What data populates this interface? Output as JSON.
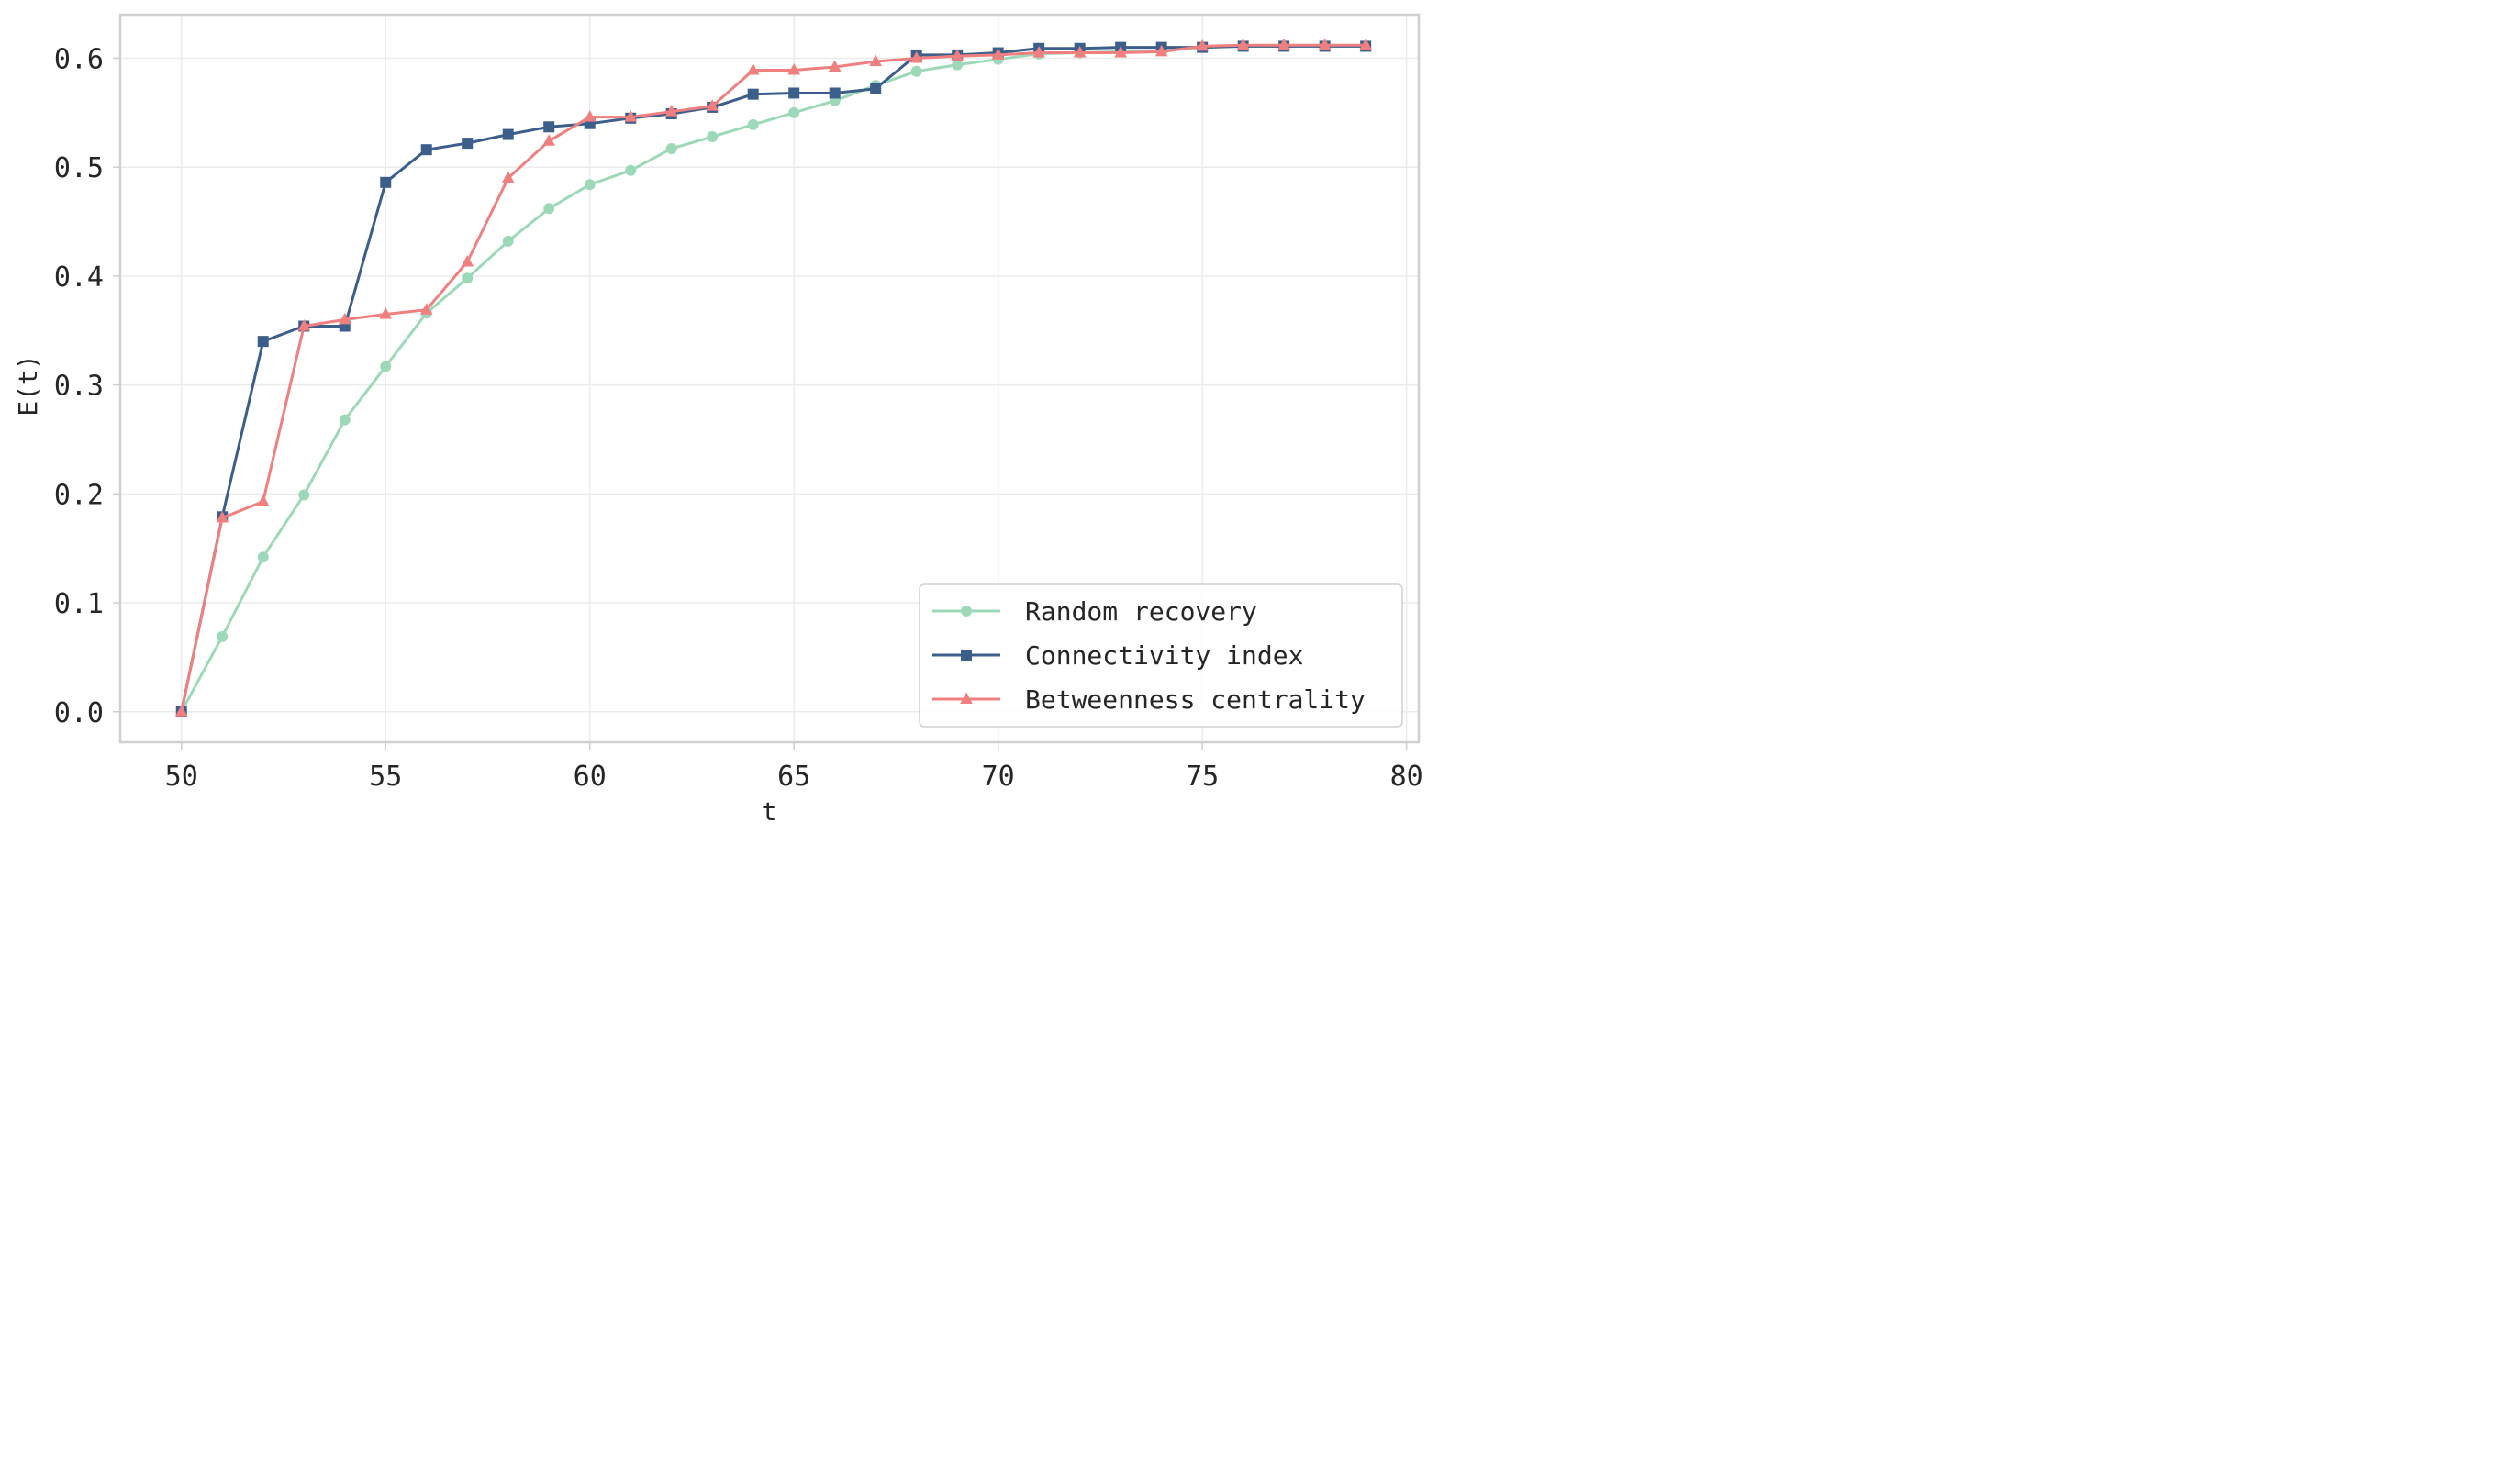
{
  "chart_data": {
    "type": "line",
    "title": "",
    "xlabel": "t",
    "ylabel": "E(t)",
    "xlim": [
      48.5,
      80.3
    ],
    "ylim": [
      -0.028,
      0.64
    ],
    "xticks": [
      50,
      55,
      60,
      65,
      70,
      75,
      80
    ],
    "yticks": [
      0.0,
      0.1,
      0.2,
      0.3,
      0.4,
      0.5,
      0.6
    ],
    "ytick_labels": [
      "0.0",
      "0.1",
      "0.2",
      "0.3",
      "0.4",
      "0.5",
      "0.6"
    ],
    "grid": true,
    "legend_position": "bottom-right",
    "x": [
      50,
      51,
      52,
      53,
      54,
      55,
      56,
      57,
      58,
      59,
      60,
      61,
      62,
      63,
      64,
      65,
      66,
      67,
      68,
      69,
      70,
      71,
      72,
      73,
      74,
      75,
      76,
      77,
      78,
      79
    ],
    "series": [
      {
        "name": "Random recovery",
        "color": "#9dd9b9",
        "marker": "circle",
        "values": [
          0.0,
          0.069,
          0.142,
          0.199,
          0.268,
          0.317,
          0.366,
          0.398,
          0.432,
          0.462,
          0.484,
          0.497,
          0.517,
          0.528,
          0.539,
          0.55,
          0.561,
          0.575,
          0.588,
          0.594,
          0.599,
          0.604,
          0.605,
          0.606,
          0.607,
          0.61,
          0.611,
          0.611,
          0.611,
          0.611
        ]
      },
      {
        "name": "Connectivity index",
        "color": "#3c5e8b",
        "marker": "square",
        "values": [
          0.0,
          0.179,
          0.34,
          0.354,
          0.354,
          0.486,
          0.516,
          0.522,
          0.53,
          0.537,
          0.54,
          0.545,
          0.549,
          0.555,
          0.567,
          0.568,
          0.568,
          0.572,
          0.603,
          0.603,
          0.605,
          0.609,
          0.609,
          0.61,
          0.61,
          0.61,
          0.611,
          0.611,
          0.611,
          0.611
        ]
      },
      {
        "name": "Betweenness centrality",
        "color": "#f07f7f",
        "marker": "triangle",
        "values": [
          0.0,
          0.178,
          0.193,
          0.354,
          0.36,
          0.365,
          0.369,
          0.413,
          0.49,
          0.524,
          0.546,
          0.546,
          0.551,
          0.556,
          0.589,
          0.589,
          0.592,
          0.597,
          0.6,
          0.602,
          0.603,
          0.605,
          0.605,
          0.605,
          0.606,
          0.611,
          0.612,
          0.612,
          0.612,
          0.612
        ]
      }
    ]
  }
}
